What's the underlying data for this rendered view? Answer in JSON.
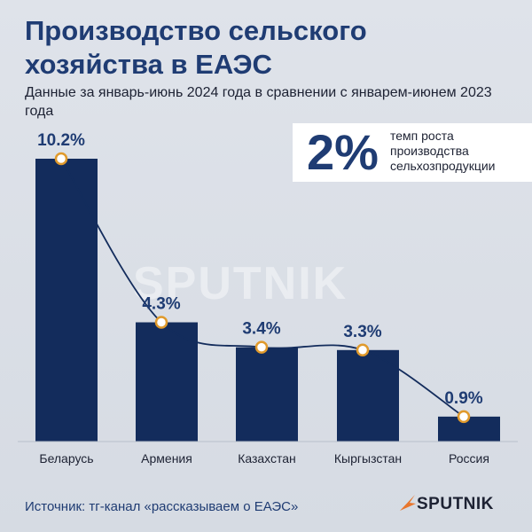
{
  "header": {
    "title": "Производство сельского хозяйства в ЕАЭС",
    "subtitle": "Данные за январь-июнь 2024 года в сравнении с январем-июнем 2023 года"
  },
  "kpi": {
    "value": "2%",
    "label": "темп роста производства сельхозпродукции"
  },
  "watermark": "SPUTNIK",
  "footer": {
    "source": "Источник: тг-канал «рассказываем о ЕАЭС»",
    "brand": "SPUTNIK"
  },
  "colors": {
    "bar": "#132c5c",
    "marker_fill": "#ffffff",
    "marker_stroke": "#e09a2c",
    "line": "#132c5c",
    "title": "#1f3c73"
  },
  "chart_data": {
    "type": "bar",
    "categories": [
      "Беларусь",
      "Армения",
      "Казахстан",
      "Кыргызстан",
      "Россия"
    ],
    "values": [
      10.2,
      4.3,
      3.4,
      3.3,
      0.9
    ],
    "value_labels": [
      "10.2%",
      "4.3%",
      "3.4%",
      "3.3%",
      "0.9%"
    ],
    "ylim": [
      0,
      10.2
    ],
    "grid": false,
    "overlay": "smooth-line-through-bar-tops"
  }
}
